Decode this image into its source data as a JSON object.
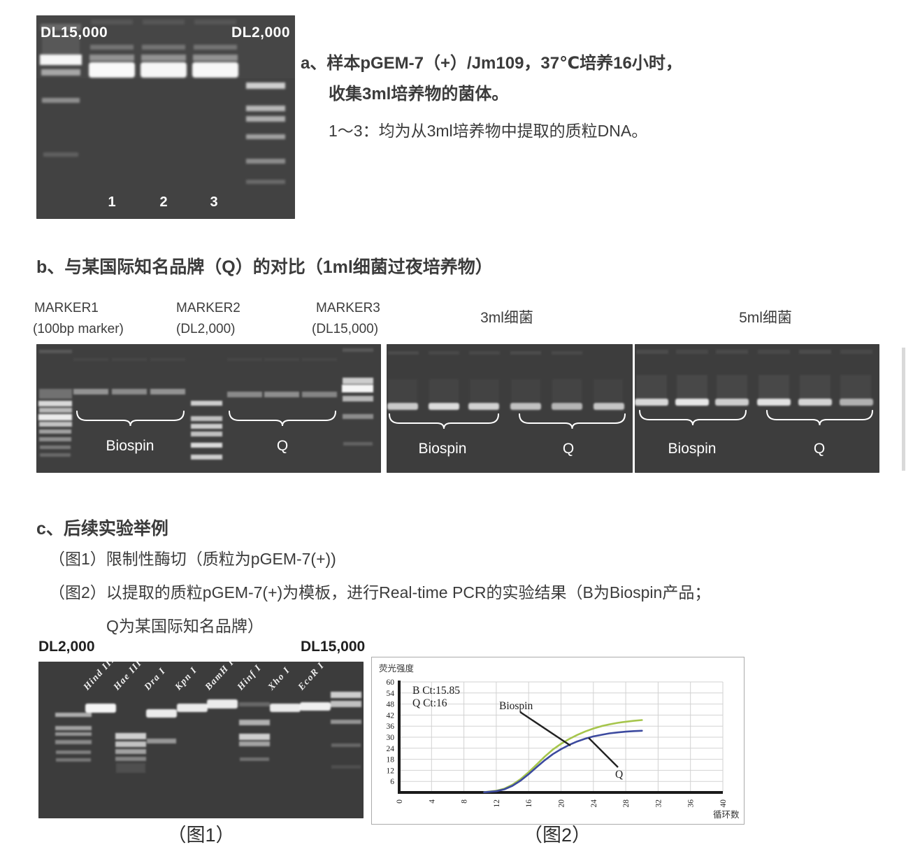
{
  "section_a": {
    "gel": {
      "left_marker": "DL15,000",
      "right_marker": "DL2,000",
      "lanes": [
        "1",
        "2",
        "3"
      ]
    },
    "line1": "a、样本pGEM-7（+）/Jm109，37℃培养16小时，",
    "line2": "收集3ml培养物的菌体。",
    "line3": "1～3：均为从3ml培养物中提取的质粒DNA。"
  },
  "section_b": {
    "heading": "b、与某国际知名品牌（Q）的对比（1ml细菌过夜培养物）",
    "markers": [
      {
        "name": "MARKER1",
        "desc": "(100bp marker)"
      },
      {
        "name": "MARKER2",
        "desc": "(DL2,000)"
      },
      {
        "name": "MARKER3",
        "desc": "(DL15,000)"
      }
    ],
    "gel2_title": "3ml细菌",
    "gel3_title": "5ml细菌",
    "label_biospin": "Biospin",
    "label_q": "Q"
  },
  "section_c": {
    "heading": "c、后续实验举例",
    "item1": "（图1）限制性酶切（质粒为pGEM-7(+))",
    "item2_line1": "（图2）以提取的质粒pGEM-7(+)为模板，进行Real-time PCR的实验结果（B为Biospin产品；",
    "item2_line2": "Q为某国际知名品牌）"
  },
  "figure1": {
    "left_marker": "DL2,000",
    "right_marker": "DL15,000",
    "enzymes": [
      "Hind III",
      "Hae III",
      "Dra I",
      "Kpn I",
      "BamH I",
      "Hinf I",
      "Xho I",
      "EcoR I"
    ],
    "caption": "（图1）"
  },
  "figure2": {
    "caption": "（图2）"
  },
  "chart_data": {
    "type": "line",
    "ylabel": "荧光强度",
    "xlabel": "循环数",
    "xlim": [
      0,
      40
    ],
    "ylim": [
      0,
      60
    ],
    "xticks": [
      0,
      4,
      8,
      12,
      16,
      20,
      24,
      28,
      32,
      36,
      40
    ],
    "yticks": [
      6,
      12,
      18,
      24,
      30,
      36,
      42,
      48,
      54,
      60
    ],
    "grid": true,
    "grid_color": "#d2d2d2",
    "annotations": {
      "b_ct": "B Ct:15.85",
      "q_ct": "Q Ct:16"
    },
    "series": [
      {
        "name": "Biospin",
        "color": "#a6c54c",
        "x": [
          10.5,
          11,
          12,
          13,
          14,
          15,
          16,
          17,
          18,
          19,
          20,
          21,
          22,
          23,
          24,
          25,
          26,
          27,
          28,
          29,
          30
        ],
        "y": [
          0.2,
          0.4,
          0.9,
          2.1,
          4.2,
          7.2,
          11,
          15.2,
          19.5,
          23.3,
          26.4,
          29,
          31.2,
          33.1,
          34.7,
          36,
          37,
          37.8,
          38.4,
          38.9,
          39.3
        ]
      },
      {
        "name": "Q",
        "color": "#3c4a9f",
        "x": [
          10.5,
          11,
          12,
          13,
          14,
          15,
          16,
          17,
          18,
          19,
          20,
          21,
          22,
          23,
          24,
          25,
          26,
          27,
          28,
          29,
          30
        ],
        "y": [
          0.1,
          0.3,
          0.7,
          1.7,
          3.6,
          6.4,
          9.9,
          13.8,
          17.5,
          20.8,
          23.5,
          25.8,
          27.7,
          29.2,
          30.4,
          31.3,
          32.1,
          32.6,
          33,
          33.3,
          33.5
        ]
      }
    ]
  }
}
